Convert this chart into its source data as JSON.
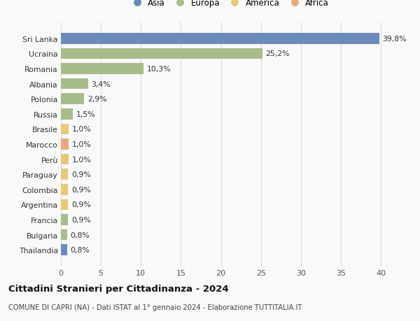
{
  "countries": [
    "Sri Lanka",
    "Ucraina",
    "Romania",
    "Albania",
    "Polonia",
    "Russia",
    "Brasile",
    "Marocco",
    "Perù",
    "Paraguay",
    "Colombia",
    "Argentina",
    "Francia",
    "Bulgaria",
    "Thailandia"
  ],
  "values": [
    39.8,
    25.2,
    10.3,
    3.4,
    2.9,
    1.5,
    1.0,
    1.0,
    1.0,
    0.9,
    0.9,
    0.9,
    0.9,
    0.8,
    0.8
  ],
  "labels": [
    "39,8%",
    "25,2%",
    "10,3%",
    "3,4%",
    "2,9%",
    "1,5%",
    "1,0%",
    "1,0%",
    "1,0%",
    "0,9%",
    "0,9%",
    "0,9%",
    "0,9%",
    "0,8%",
    "0,8%"
  ],
  "continents": [
    "Asia",
    "Europa",
    "Europa",
    "Europa",
    "Europa",
    "Europa",
    "America",
    "Africa",
    "America",
    "America",
    "America",
    "America",
    "Europa",
    "Europa",
    "Asia"
  ],
  "colors": {
    "Asia": "#6b8cba",
    "Europa": "#a8bc8a",
    "America": "#e8c97a",
    "Africa": "#e8a87a"
  },
  "legend_order": [
    "Asia",
    "Europa",
    "America",
    "Africa"
  ],
  "title": "Cittadini Stranieri per Cittadinanza - 2024",
  "subtitle": "COMUNE DI CAPRI (NA) - Dati ISTAT al 1° gennaio 2024 - Elaborazione TUTTITALIA.IT",
  "xlim": [
    0,
    42
  ],
  "xticks": [
    0,
    5,
    10,
    15,
    20,
    25,
    30,
    35,
    40
  ],
  "background_color": "#f9f9f9",
  "grid_color": "#dddddd"
}
